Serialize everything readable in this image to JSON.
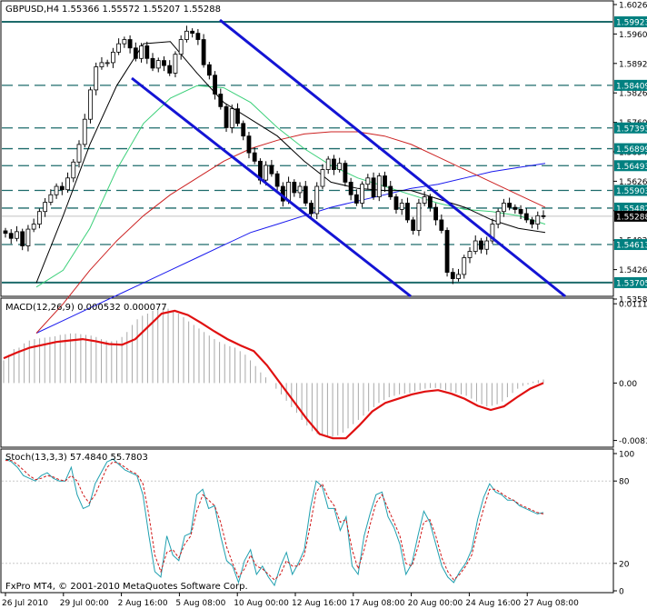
{
  "chart_data": [
    {
      "type": "line",
      "title": "GBPUSD,H4",
      "ohlc_readout": "1.55366 1.55572 1.55207 1.55288",
      "ylim": [
        1.534,
        1.604
      ],
      "y_ticks": [
        "1.60260",
        "1.59600",
        "1.58920",
        "1.58260",
        "1.57600",
        "1.56940",
        "1.56260",
        "1.55600",
        "1.54920",
        "1.54260",
        "1.53580"
      ],
      "level_labels": [
        {
          "text": "1.59923",
          "value": 1.59923,
          "color": "#008080"
        },
        {
          "text": "1.58409",
          "value": 1.58409,
          "color": "#008080"
        },
        {
          "text": "1.57393",
          "value": 1.57393,
          "color": "#008080"
        },
        {
          "text": "1.56899",
          "value": 1.56899,
          "color": "#008080"
        },
        {
          "text": "1.56493",
          "value": 1.56493,
          "color": "#008080"
        },
        {
          "text": "1.55903",
          "value": 1.55903,
          "color": "#008080"
        },
        {
          "text": "1.55482",
          "value": 1.55482,
          "color": "#008080"
        },
        {
          "text": "1.55288",
          "value": 1.55288,
          "color": "#000000"
        },
        {
          "text": "1.54613",
          "value": 1.54613,
          "color": "#008080"
        },
        {
          "text": "1.53705",
          "value": 1.53705,
          "color": "#008080"
        }
      ],
      "close_series": [
        1.5488,
        1.5476,
        1.5492,
        1.5458,
        1.5498,
        1.551,
        1.554,
        1.5562,
        1.558,
        1.56,
        1.5592,
        1.562,
        1.5658,
        1.57,
        1.576,
        1.583,
        1.5885,
        1.5895,
        1.5895,
        1.592,
        1.594,
        1.595,
        1.593,
        1.5905,
        1.5935,
        1.5905,
        1.5882,
        1.59,
        1.5888,
        1.587,
        1.5915,
        1.595,
        1.597,
        1.5965,
        1.595,
        1.589,
        1.5865,
        1.582,
        1.579,
        1.574,
        1.5785,
        1.575,
        1.572,
        1.568,
        1.566,
        1.5615,
        1.565,
        1.563,
        1.56,
        1.5565,
        1.561,
        1.5585,
        1.56,
        1.556,
        1.5535,
        1.56,
        1.564,
        1.5665,
        1.564,
        1.5655,
        1.561,
        1.558,
        1.556,
        1.5605,
        1.562,
        1.5575,
        1.5625,
        1.56,
        1.5575,
        1.5545,
        1.556,
        1.552,
        1.5495,
        1.556,
        1.5575,
        1.555,
        1.552,
        1.5495,
        1.5395,
        1.538,
        1.539,
        1.543,
        1.5445,
        1.547,
        1.545,
        1.547,
        1.551,
        1.554,
        1.556,
        1.555,
        1.5545,
        1.5535,
        1.552,
        1.551,
        1.553,
        1.5529
      ],
      "ma_black": {
        "color": "#000000",
        "values": [
          1.537,
          1.553,
          1.57,
          1.584,
          1.594,
          1.5945,
          1.587,
          1.58,
          1.576,
          1.572,
          1.566,
          1.561,
          1.5595,
          1.559,
          1.559,
          1.557,
          1.555,
          1.552,
          1.55,
          1.549
        ]
      },
      "ma_green": {
        "color": "#3cd07a",
        "values": [
          1.536,
          1.54,
          1.55,
          1.564,
          1.575,
          1.581,
          1.584,
          1.5835,
          1.58,
          1.574,
          1.569,
          1.565,
          1.562,
          1.56,
          1.558,
          1.556,
          1.5545,
          1.554,
          1.553,
          1.551
        ]
      },
      "ma_red": {
        "color": "#cc2222",
        "values": [
          1.525,
          1.532,
          1.54,
          1.547,
          1.553,
          1.558,
          1.562,
          1.566,
          1.569,
          1.571,
          1.5725,
          1.573,
          1.573,
          1.572,
          1.57,
          1.567,
          1.564,
          1.561,
          1.558,
          1.555
        ]
      },
      "ma_blue": {
        "color": "#1a1aee",
        "values": [
          1.525,
          1.528,
          1.531,
          1.534,
          1.537,
          1.54,
          1.543,
          1.546,
          1.549,
          1.551,
          1.553,
          1.555,
          1.5565,
          1.558,
          1.5595,
          1.5605,
          1.562,
          1.5635,
          1.5645,
          1.5655
        ]
      }
    },
    {
      "type": "bar",
      "title": "MACD(12,26,9) 0.000532 0.000077",
      "ylim": [
        -0.0088,
        0.0116
      ],
      "y_ticks": [
        {
          "text": "0.011189",
          "value": 0.01119
        },
        {
          "text": "0.00",
          "value": 0.0
        },
        {
          "text": "-0.008106",
          "value": -0.008106
        }
      ],
      "histogram": [
        0.0032,
        0.004,
        0.0048,
        0.005,
        0.0056,
        0.006,
        0.0062,
        0.0063,
        0.0064,
        0.0065,
        0.0066,
        0.0068,
        0.0069,
        0.007,
        0.007,
        0.0069,
        0.0068,
        0.0067,
        0.0065,
        0.0062,
        0.006,
        0.0059,
        0.006,
        0.0065,
        0.0072,
        0.0082,
        0.009,
        0.0095,
        0.0098,
        0.0102,
        0.0104,
        0.0106,
        0.0105,
        0.0102,
        0.0098,
        0.0093,
        0.0087,
        0.0082,
        0.0077,
        0.0072,
        0.0067,
        0.0062,
        0.0058,
        0.0055,
        0.0052,
        0.005,
        0.0045,
        0.004,
        0.0032,
        0.0024,
        0.0015,
        0.0008,
        0.0,
        -0.0008,
        -0.0016,
        -0.0025,
        -0.0034,
        -0.0042,
        -0.0052,
        -0.006,
        -0.0068,
        -0.0072,
        -0.0074,
        -0.0076,
        -0.0076,
        -0.0074,
        -0.007,
        -0.0064,
        -0.0058,
        -0.0052,
        -0.0046,
        -0.004,
        -0.0034,
        -0.0028,
        -0.0024,
        -0.002,
        -0.0018,
        -0.0016,
        -0.0015,
        -0.0014,
        -0.0012,
        -0.001,
        -0.0008,
        -0.0007,
        -0.0007,
        -0.0008,
        -0.001,
        -0.0012,
        -0.0014,
        -0.0016,
        -0.0018,
        -0.0022,
        -0.0026,
        -0.003,
        -0.0033,
        -0.0032,
        -0.003,
        -0.0026,
        -0.002,
        -0.0014,
        -0.0008,
        -0.0004,
        -0.0002,
        0.0002,
        0.0004,
        0.0005
      ],
      "signal": [
        0.0035,
        0.0043,
        0.005,
        0.0054,
        0.0058,
        0.006,
        0.0062,
        0.0059,
        0.0055,
        0.0054,
        0.0062,
        0.008,
        0.0098,
        0.0102,
        0.0096,
        0.0085,
        0.0073,
        0.0062,
        0.0053,
        0.0045,
        0.0025,
        0.0,
        -0.0025,
        -0.005,
        -0.0072,
        -0.0078,
        -0.0078,
        -0.006,
        -0.004,
        -0.0028,
        -0.0022,
        -0.0016,
        -0.0012,
        -0.001,
        -0.0015,
        -0.0022,
        -0.0032,
        -0.0038,
        -0.0033,
        -0.002,
        -0.0008,
        0.0
      ]
    },
    {
      "type": "line",
      "title": "Stoch(13,3,3) 57.4840 55.7803",
      "ylim": [
        0,
        100
      ],
      "y_ticks": [
        {
          "text": "100",
          "value": 100
        },
        {
          "text": "80",
          "value": 80
        },
        {
          "text": "20",
          "value": 20
        },
        {
          "text": "0",
          "value": 0
        }
      ],
      "main_line": {
        "color": "#20a0b0",
        "values": [
          96,
          94,
          90,
          84,
          82,
          80,
          84,
          86,
          82,
          80,
          80,
          90,
          70,
          60,
          62,
          78,
          86,
          94,
          96,
          92,
          88,
          86,
          84,
          70,
          40,
          14,
          10,
          40,
          26,
          22,
          40,
          42,
          70,
          74,
          60,
          62,
          40,
          22,
          18,
          6,
          22,
          30,
          12,
          18,
          10,
          4,
          18,
          28,
          12,
          20,
          30,
          60,
          80,
          76,
          60,
          60,
          44,
          54,
          18,
          12,
          40,
          56,
          70,
          72,
          54,
          46,
          34,
          12,
          20,
          40,
          58,
          50,
          34,
          18,
          10,
          6,
          14,
          20,
          30,
          52,
          68,
          78,
          72,
          70,
          66,
          66,
          62,
          60,
          58,
          56,
          57
        ]
      },
      "signal_line": {
        "color": "#d01818",
        "values": [
          95,
          95,
          92,
          88,
          84,
          81,
          82,
          84,
          83,
          81,
          80,
          84,
          80,
          70,
          64,
          70,
          80,
          90,
          94,
          93,
          90,
          87,
          85,
          78,
          55,
          26,
          14,
          28,
          30,
          24,
          34,
          40,
          58,
          70,
          66,
          62,
          50,
          32,
          20,
          10,
          16,
          26,
          18,
          16,
          12,
          8,
          12,
          22,
          18,
          18,
          26,
          48,
          72,
          78,
          68,
          62,
          50,
          52,
          30,
          16,
          30,
          48,
          64,
          70,
          60,
          50,
          40,
          20,
          18,
          32,
          50,
          52,
          40,
          24,
          14,
          8,
          12,
          18,
          26,
          44,
          60,
          74,
          74,
          71,
          68,
          66,
          63,
          61,
          59,
          57,
          56
        ]
      }
    }
  ],
  "x_ticks": [
    "26 Jul 2010",
    "29 Jul 00:00",
    "2 Aug 16:00",
    "5 Aug 08:00",
    "10 Aug 00:00",
    "12 Aug 16:00",
    "17 Aug 08:00",
    "20 Aug 00:00",
    "24 Aug 16:00",
    "27 Aug 08:00"
  ],
  "footer": "FxPro MT4, © 2001-2010 MetaQuotes Software Corp."
}
